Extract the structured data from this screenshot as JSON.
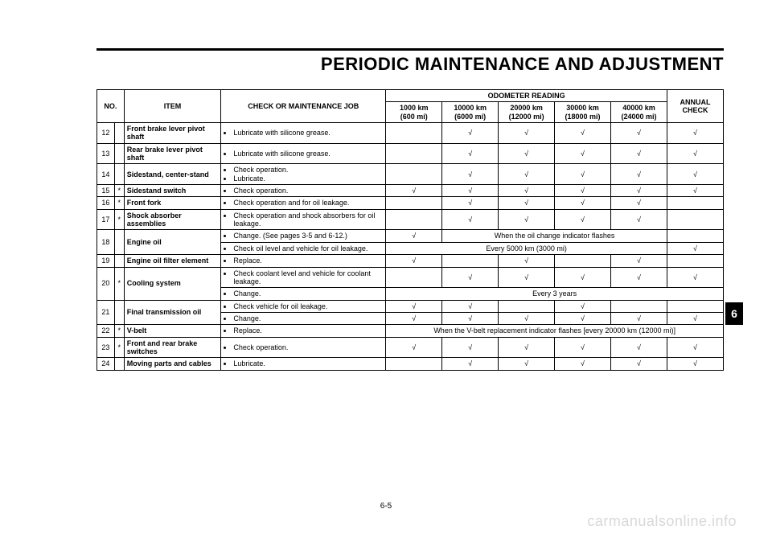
{
  "title": "PERIODIC MAINTENANCE AND ADJUSTMENT",
  "pageNumber": "6-5",
  "sideTab": "6",
  "watermark": "carmanualsonline.info",
  "headers": {
    "no": "NO.",
    "item": "ITEM",
    "job": "CHECK OR MAINTENANCE JOB",
    "odometer": "ODOMETER READING",
    "annual": "ANNUAL CHECK",
    "cols": [
      {
        "km": "1000 km",
        "mi": "(600 mi)"
      },
      {
        "km": "10000 km",
        "mi": "(6000 mi)"
      },
      {
        "km": "20000 km",
        "mi": "(12000 mi)"
      },
      {
        "km": "30000 km",
        "mi": "(18000 mi)"
      },
      {
        "km": "40000 km",
        "mi": "(24000 mi)"
      }
    ]
  },
  "tick": "√",
  "rows": {
    "r12": {
      "no": "12",
      "star": "",
      "item": "Front brake lever pivot shaft",
      "job": "Lubricate with silicone grease."
    },
    "r13": {
      "no": "13",
      "star": "",
      "item": "Rear brake lever pivot shaft",
      "job": "Lubricate with silicone grease."
    },
    "r14": {
      "no": "14",
      "star": "",
      "item": "Sidestand, center-stand",
      "job1": "Check operation.",
      "job2": "Lubricate."
    },
    "r15": {
      "no": "15",
      "star": "*",
      "item": "Sidestand switch",
      "job": "Check operation."
    },
    "r16": {
      "no": "16",
      "star": "*",
      "item": "Front fork",
      "job": "Check operation and for oil leakage."
    },
    "r17": {
      "no": "17",
      "star": "*",
      "item": "Shock absorber assemblies",
      "job": "Check operation and shock absorbers for oil leakage."
    },
    "r18": {
      "no": "18",
      "star": "",
      "item": "Engine oil",
      "job1": "Change. (See pages 3-5 and 6-12.)",
      "note1": "When the oil change indicator flashes",
      "job2": "Check oil level and vehicle for oil leakage.",
      "note2": "Every 5000 km (3000 mi)"
    },
    "r19": {
      "no": "19",
      "star": "",
      "item": "Engine oil filter element",
      "job": "Replace."
    },
    "r20": {
      "no": "20",
      "star": "*",
      "item": "Cooling system",
      "job1": "Check coolant level and vehicle for coolant leakage.",
      "job2": "Change.",
      "note2": "Every 3 years"
    },
    "r21": {
      "no": "21",
      "star": "",
      "item": "Final transmission oil",
      "job1": "Check vehicle for oil leakage.",
      "job2": "Change."
    },
    "r22": {
      "no": "22",
      "star": "*",
      "item": "V-belt",
      "job": "Replace.",
      "note": "When the V-belt replacement indicator flashes [every 20000 km (12000 mi)]"
    },
    "r23": {
      "no": "23",
      "star": "*",
      "item": "Front and rear brake switches",
      "job": "Check operation."
    },
    "r24": {
      "no": "24",
      "star": "",
      "item": "Moving parts and cables",
      "job": "Lubricate."
    }
  }
}
